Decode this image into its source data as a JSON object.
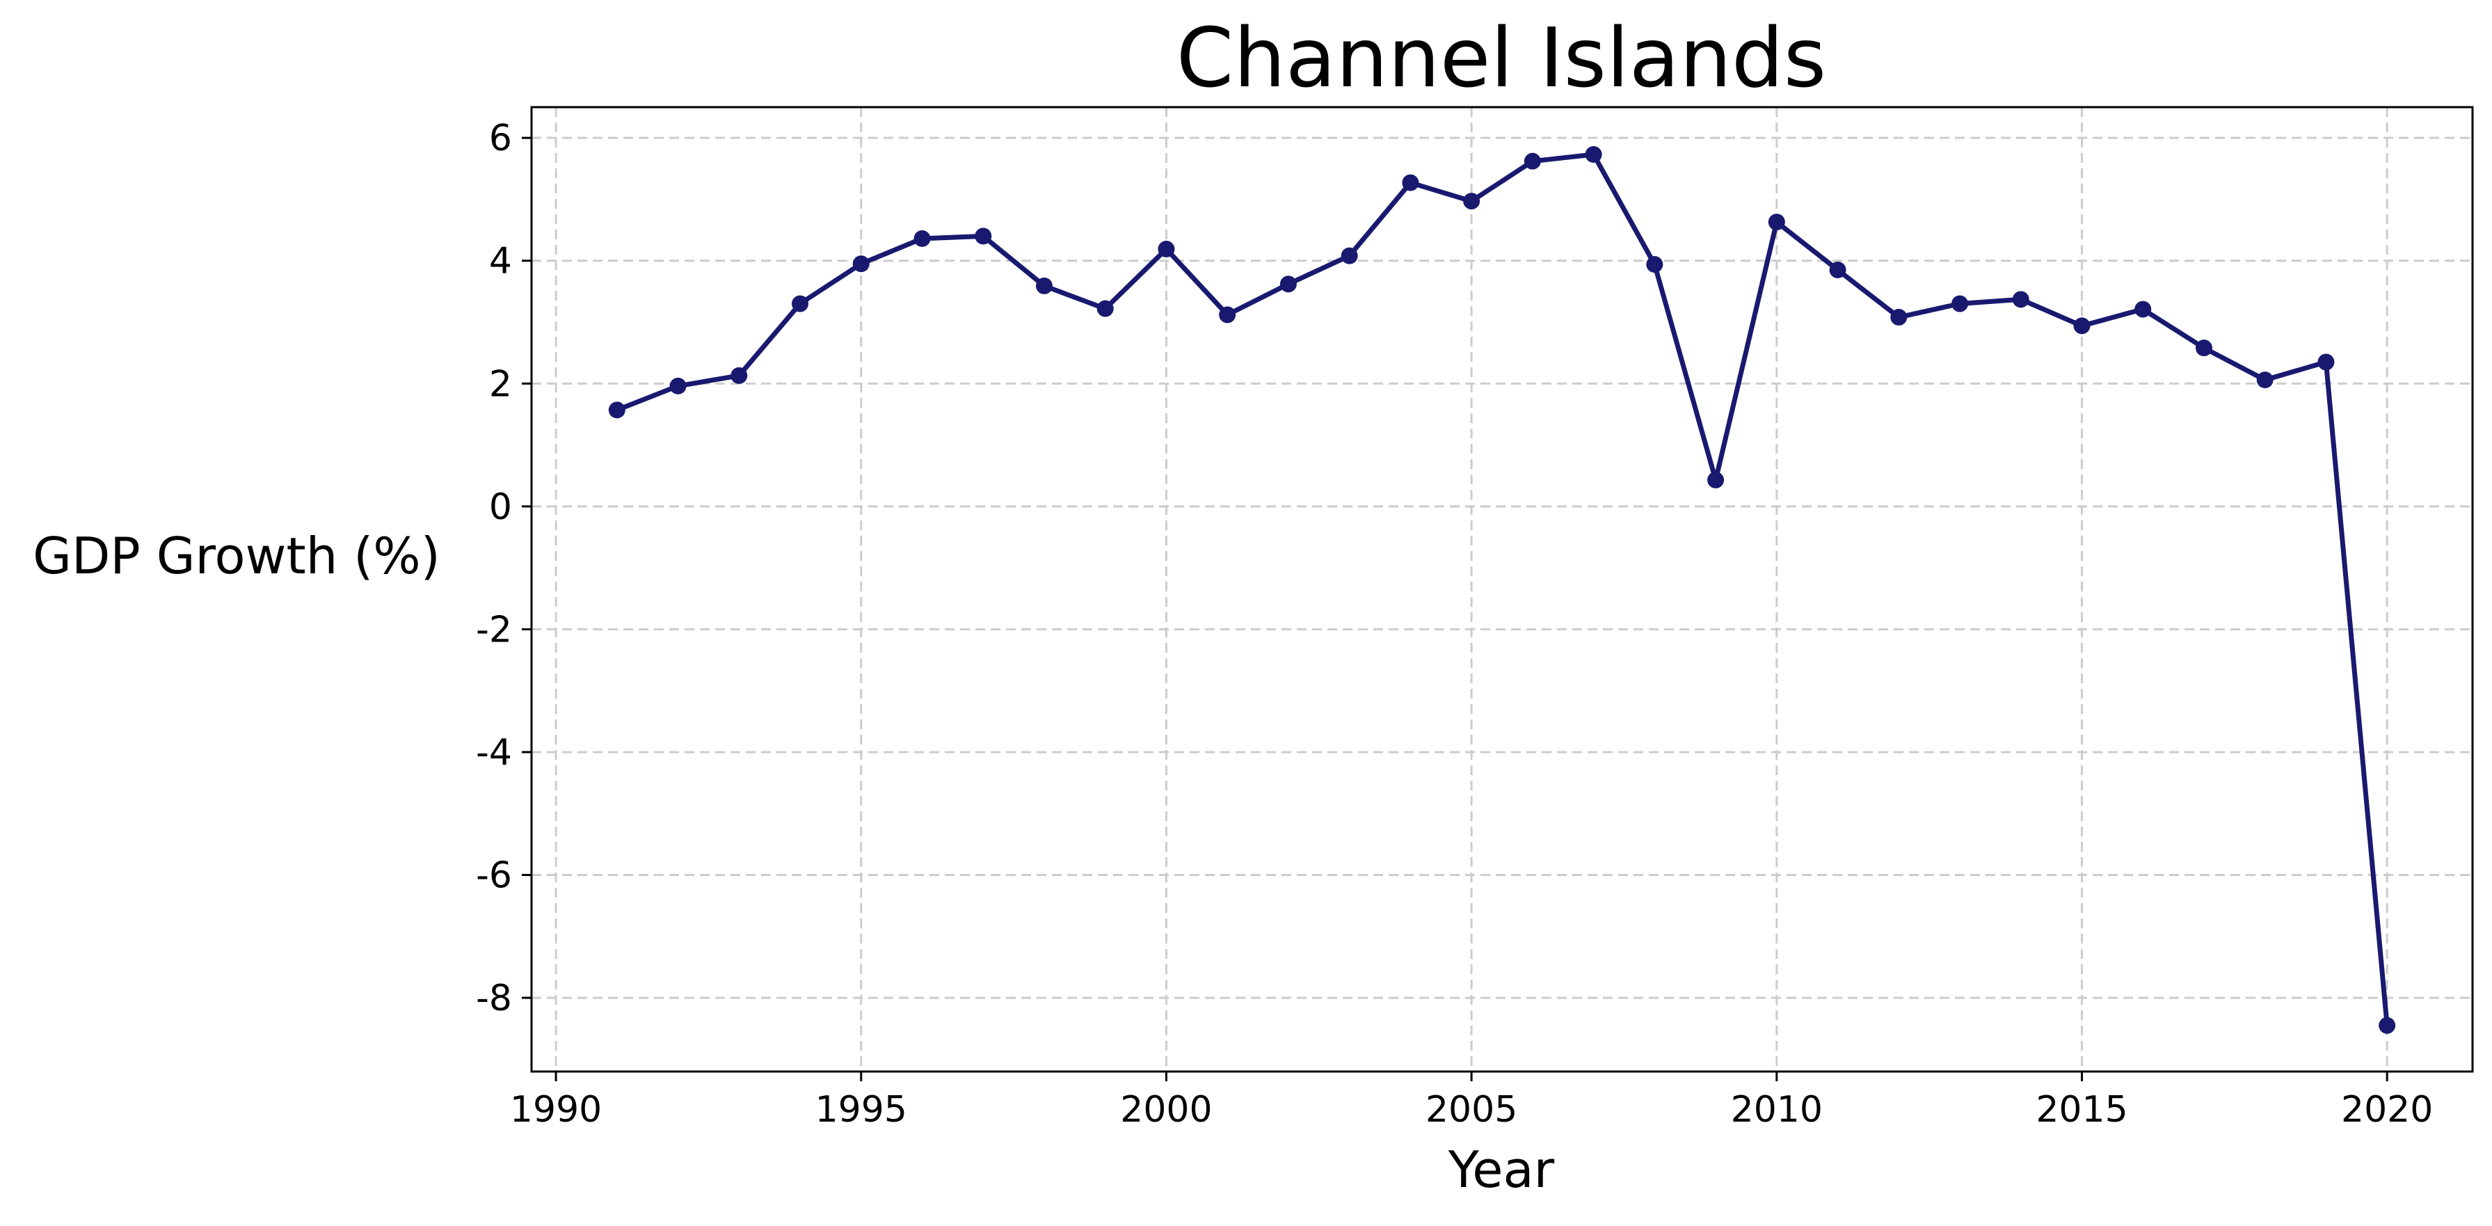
{
  "chart_data": {
    "type": "line",
    "title": "Channel Islands",
    "xlabel": "Year",
    "ylabel": "GDP Growth (%)",
    "xlim": [
      1989.6,
      2021.4
    ],
    "ylim": [
      -9.2,
      6.5
    ],
    "xticks": [
      1990,
      1995,
      2000,
      2005,
      2010,
      2015,
      2020
    ],
    "yticks": [
      -8,
      -6,
      -4,
      -2,
      0,
      2,
      4,
      6
    ],
    "grid": true,
    "line_color": "#191970",
    "series": [
      {
        "x": [
          1991,
          1992,
          1993,
          1994,
          1995,
          1996,
          1997,
          1998,
          1999,
          2000,
          2001,
          2002,
          2003,
          2004,
          2005,
          2006,
          2007,
          2008,
          2009,
          2010,
          2011,
          2012,
          2013,
          2014,
          2015,
          2016,
          2017,
          2018,
          2019,
          2020
        ],
        "values": [
          1.57,
          1.96,
          2.13,
          3.3,
          3.95,
          4.36,
          4.4,
          3.59,
          3.22,
          4.19,
          3.12,
          3.62,
          4.08,
          5.27,
          4.97,
          5.62,
          5.73,
          3.94,
          0.43,
          4.63,
          3.85,
          3.08,
          3.3,
          3.37,
          2.94,
          3.21,
          2.58,
          2.06,
          2.35,
          -8.45
        ]
      }
    ]
  }
}
